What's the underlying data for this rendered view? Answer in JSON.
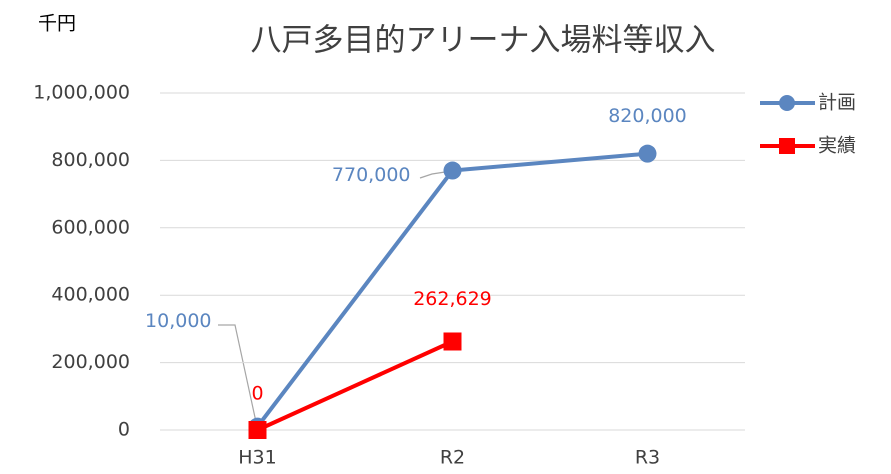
{
  "chart_data": {
    "type": "line",
    "title": "八戸多目的アリーナ入場料等収入",
    "y_unit": "千円",
    "categories": [
      "H31",
      "R2",
      "R3"
    ],
    "series": [
      {
        "name": "計画",
        "color": "#5b86c0",
        "values": [
          10000,
          770000,
          820000
        ],
        "value_labels": [
          "10,000",
          "770,000",
          "820,000"
        ],
        "marker": "circle"
      },
      {
        "name": "実績",
        "color": "#ff0000",
        "values": [
          0,
          262629,
          null
        ],
        "value_labels": [
          "0",
          "262,629",
          null
        ],
        "marker": "square"
      }
    ],
    "ylim": [
      0,
      1000000
    ],
    "yticks": [
      0,
      {
        "value": 200000,
        "label": "200,000"
      },
      {
        "value": 400000,
        "label": "400,000"
      },
      {
        "value": 600000,
        "label": "600,000"
      },
      {
        "value": 800000,
        "label": "800,000"
      },
      {
        "value": 1000000,
        "label": "1,000,000"
      }
    ],
    "grid": true,
    "legend": "right"
  }
}
